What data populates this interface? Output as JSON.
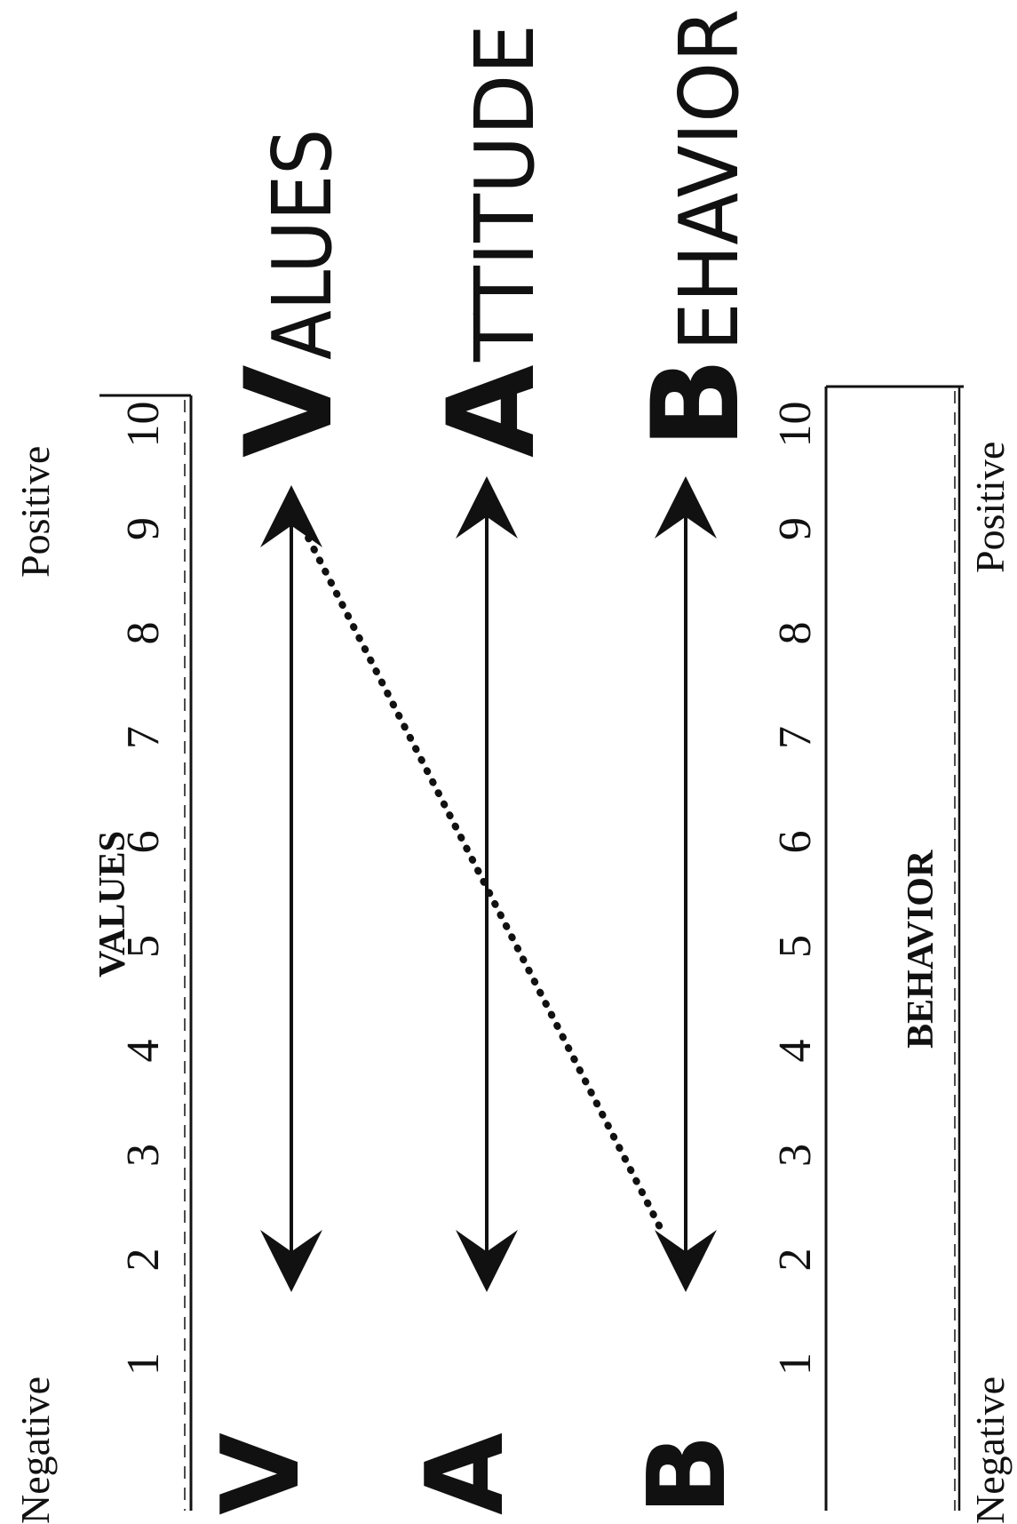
{
  "scale": {
    "ticks": [
      "1",
      "2",
      "3",
      "4",
      "5",
      "6",
      "7",
      "8",
      "9",
      "10"
    ],
    "negative_label": "Negative",
    "positive_label": "Positive"
  },
  "values_scale": {
    "title": "VALUES"
  },
  "behavior_scale": {
    "title": "BEHAVIOR"
  },
  "rows": [
    {
      "letter": "V",
      "word": "VALUES"
    },
    {
      "letter": "A",
      "word": "ATTITUDE"
    },
    {
      "letter": "B",
      "word": "BEHAVIOR"
    }
  ],
  "colors": {
    "ink": "#111111",
    "paper": "#ffffff"
  }
}
